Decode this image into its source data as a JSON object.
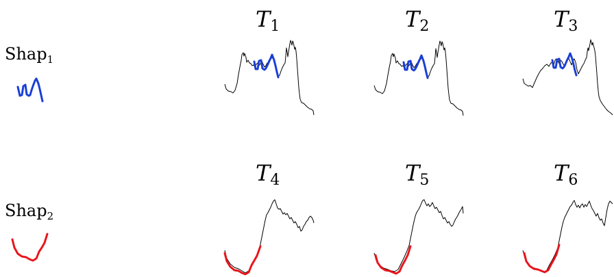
{
  "shapelets": [
    {
      "label": "Shap",
      "index": "1",
      "color": "#1a3fd6"
    },
    {
      "label": "Shap",
      "index": "2",
      "color": "#e8161c"
    }
  ],
  "series": [
    {
      "label": "T",
      "index": "1",
      "shapelet": 0
    },
    {
      "label": "T",
      "index": "2",
      "shapelet": 0
    },
    {
      "label": "T",
      "index": "3",
      "shapelet": 0
    },
    {
      "label": "T",
      "index": "4",
      "shapelet": 1
    },
    {
      "label": "T",
      "index": "5",
      "shapelet": 1
    },
    {
      "label": "T",
      "index": "6",
      "shapelet": 1
    }
  ]
}
